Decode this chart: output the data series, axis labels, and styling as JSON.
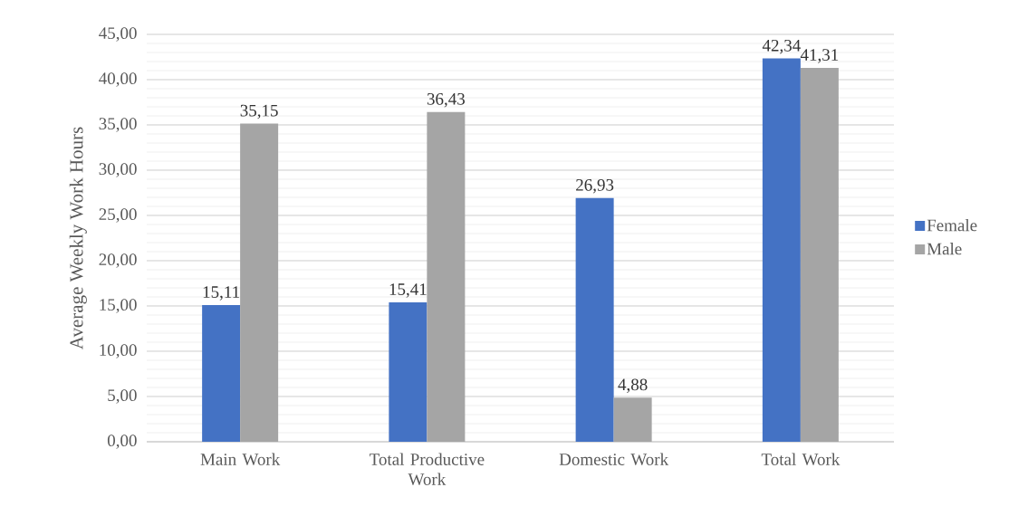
{
  "chart_data": {
    "type": "bar",
    "ylabel": "Average Weekly Work Hours",
    "categories": [
      "Main Work",
      "Total Productive Work",
      "Domestic Work",
      "Total Work"
    ],
    "series": [
      {
        "name": "Female",
        "color": "#4472c4",
        "values": [
          15.11,
          15.41,
          26.93,
          42.34
        ],
        "value_labels": [
          "15,11",
          "15,41",
          "26,93",
          "42,34"
        ]
      },
      {
        "name": "Male",
        "color": "#a5a5a5",
        "values": [
          35.15,
          36.43,
          4.88,
          41.31
        ],
        "value_labels": [
          "35,15",
          "36,43",
          "4,88",
          "41,31"
        ]
      }
    ],
    "ylim": [
      0,
      45
    ],
    "yticks": [
      {
        "value": 0,
        "label": "0,00"
      },
      {
        "value": 5,
        "label": "5,00"
      },
      {
        "value": 10,
        "label": "10,00"
      },
      {
        "value": 15,
        "label": "15,00"
      },
      {
        "value": 20,
        "label": "20,00"
      },
      {
        "value": 25,
        "label": "25,00"
      },
      {
        "value": 30,
        "label": "30,00"
      },
      {
        "value": 35,
        "label": "35,00"
      },
      {
        "value": 40,
        "label": "40,00"
      },
      {
        "value": 45,
        "label": "45,00"
      }
    ],
    "grid": "y",
    "legend": "right"
  }
}
